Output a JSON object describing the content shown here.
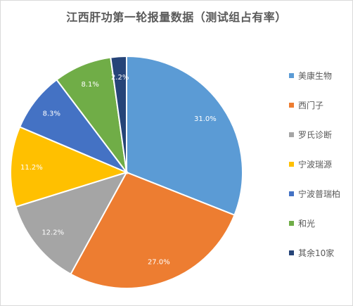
{
  "chart_data": {
    "type": "pie",
    "title": "江西肝功第一轮报量数据（测试组占有率）",
    "categories": [
      "美康生物",
      "西门子",
      "罗氏诊断",
      "宁波瑞源",
      "宁波普瑞柏",
      "和光",
      "其余10家"
    ],
    "values": [
      31.0,
      27.0,
      12.2,
      11.2,
      8.3,
      8.1,
      2.2
    ],
    "value_labels": [
      "31.0%",
      "27.0%",
      "12.2%",
      "11.2%",
      "8.3%",
      "8.1%",
      "2.2%"
    ],
    "colors": [
      "#5b9bd5",
      "#ed7d31",
      "#a5a5a5",
      "#ffc000",
      "#4472c4",
      "#70ad47",
      "#264478"
    ],
    "start_angle": "12 o'clock",
    "direction": "clockwise",
    "legend_position": "right",
    "slice_border_color": "#ffffff"
  }
}
